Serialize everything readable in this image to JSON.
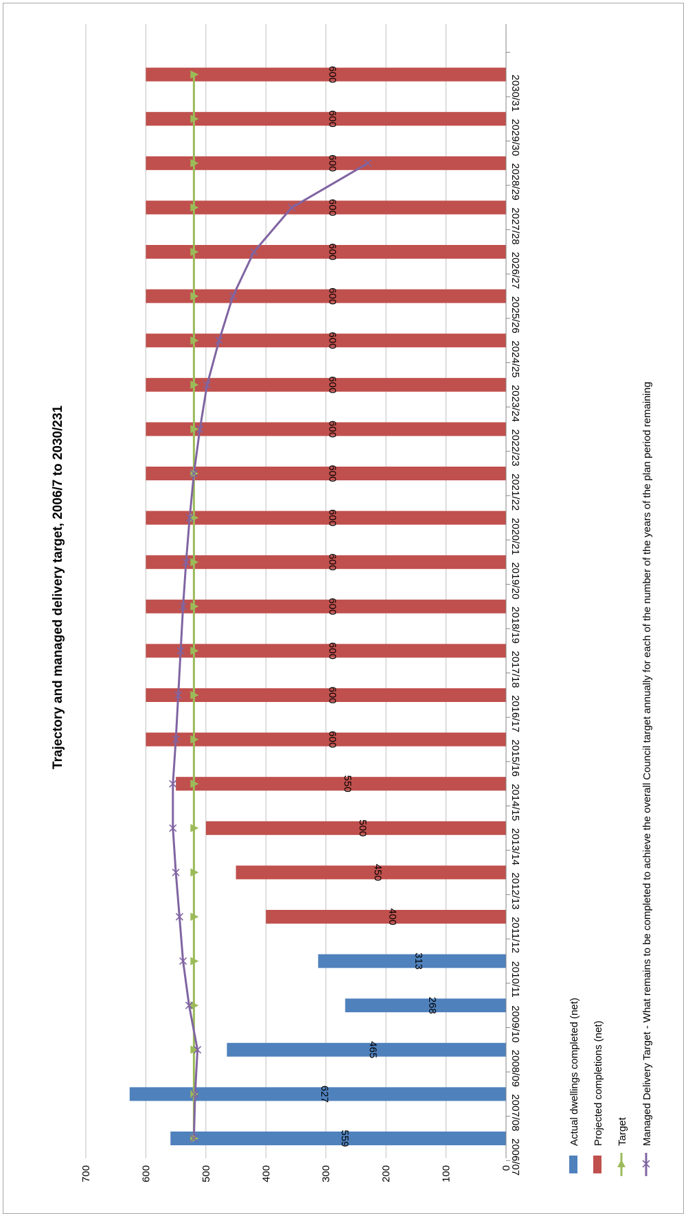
{
  "chart_data": {
    "type": "bar",
    "title": "Trajectory and managed delivery target, 2006/7 to 2030/231",
    "orientation": "rotated-90-clockwise",
    "categories": [
      "2006/07",
      "2007/08",
      "2008/09",
      "2009/10",
      "2010/11",
      "2011/12",
      "2012/13",
      "2013/14",
      "2014/15",
      "2015/16",
      "2016/17",
      "2017/18",
      "2018/19",
      "2019/20",
      "2020/21",
      "2021/22",
      "2022/23",
      "2023/24",
      "2024/25",
      "2025/26",
      "2026/27",
      "2027/28",
      "2028/29",
      "2029/30",
      "2030/31"
    ],
    "ylim": [
      0,
      700
    ],
    "yticks": [
      0,
      100,
      200,
      300,
      400,
      500,
      600,
      700
    ],
    "grid": true,
    "legend_placement": "bottom",
    "series": [
      {
        "name": "Actual dwellings completed (net)",
        "kind": "bar",
        "color": "#4f81bd",
        "values": [
          559,
          627,
          465,
          268,
          313,
          null,
          null,
          null,
          null,
          null,
          null,
          null,
          null,
          null,
          null,
          null,
          null,
          null,
          null,
          null,
          null,
          null,
          null,
          null,
          null
        ],
        "labels": [
          "559",
          "627",
          "465",
          "268",
          "313",
          "",
          "",
          "",
          "",
          "",
          "",
          "",
          "",
          "",
          "",
          "",
          "",
          "",
          "",
          "",
          "",
          "",
          "",
          "",
          ""
        ]
      },
      {
        "name": "Projected completions (net)",
        "kind": "bar",
        "color": "#c0504d",
        "values": [
          null,
          null,
          null,
          null,
          null,
          400,
          450,
          500,
          550,
          600,
          600,
          600,
          600,
          600,
          600,
          600,
          600,
          600,
          600,
          600,
          600,
          600,
          600,
          600,
          600
        ],
        "labels": [
          "",
          "",
          "",
          "",
          "",
          "400",
          "450",
          "500",
          "550",
          "600",
          "600",
          "600",
          "600",
          "600",
          "600",
          "600",
          "600",
          "600",
          "600",
          "600",
          "600",
          "600",
          "600",
          "600",
          "600"
        ]
      },
      {
        "name": "Target",
        "kind": "line",
        "marker": "triangle",
        "color": "#9bbb59",
        "values": [
          520,
          520,
          520,
          520,
          520,
          520,
          520,
          520,
          520,
          520,
          520,
          520,
          520,
          520,
          520,
          520,
          520,
          520,
          520,
          520,
          520,
          520,
          520,
          520,
          520
        ]
      },
      {
        "name": "Managed Delivery Target - What remains to be completed to achieve the overall Council target annually for each of the number of the years of the plan period remaining",
        "kind": "line",
        "marker": "x",
        "color": "#8064a2",
        "values": [
          520,
          518,
          514,
          528,
          538,
          544,
          550,
          555,
          555,
          550,
          546,
          542,
          538,
          533,
          527,
          520,
          510,
          498,
          478,
          455,
          420,
          357,
          230,
          null,
          null
        ]
      }
    ]
  }
}
